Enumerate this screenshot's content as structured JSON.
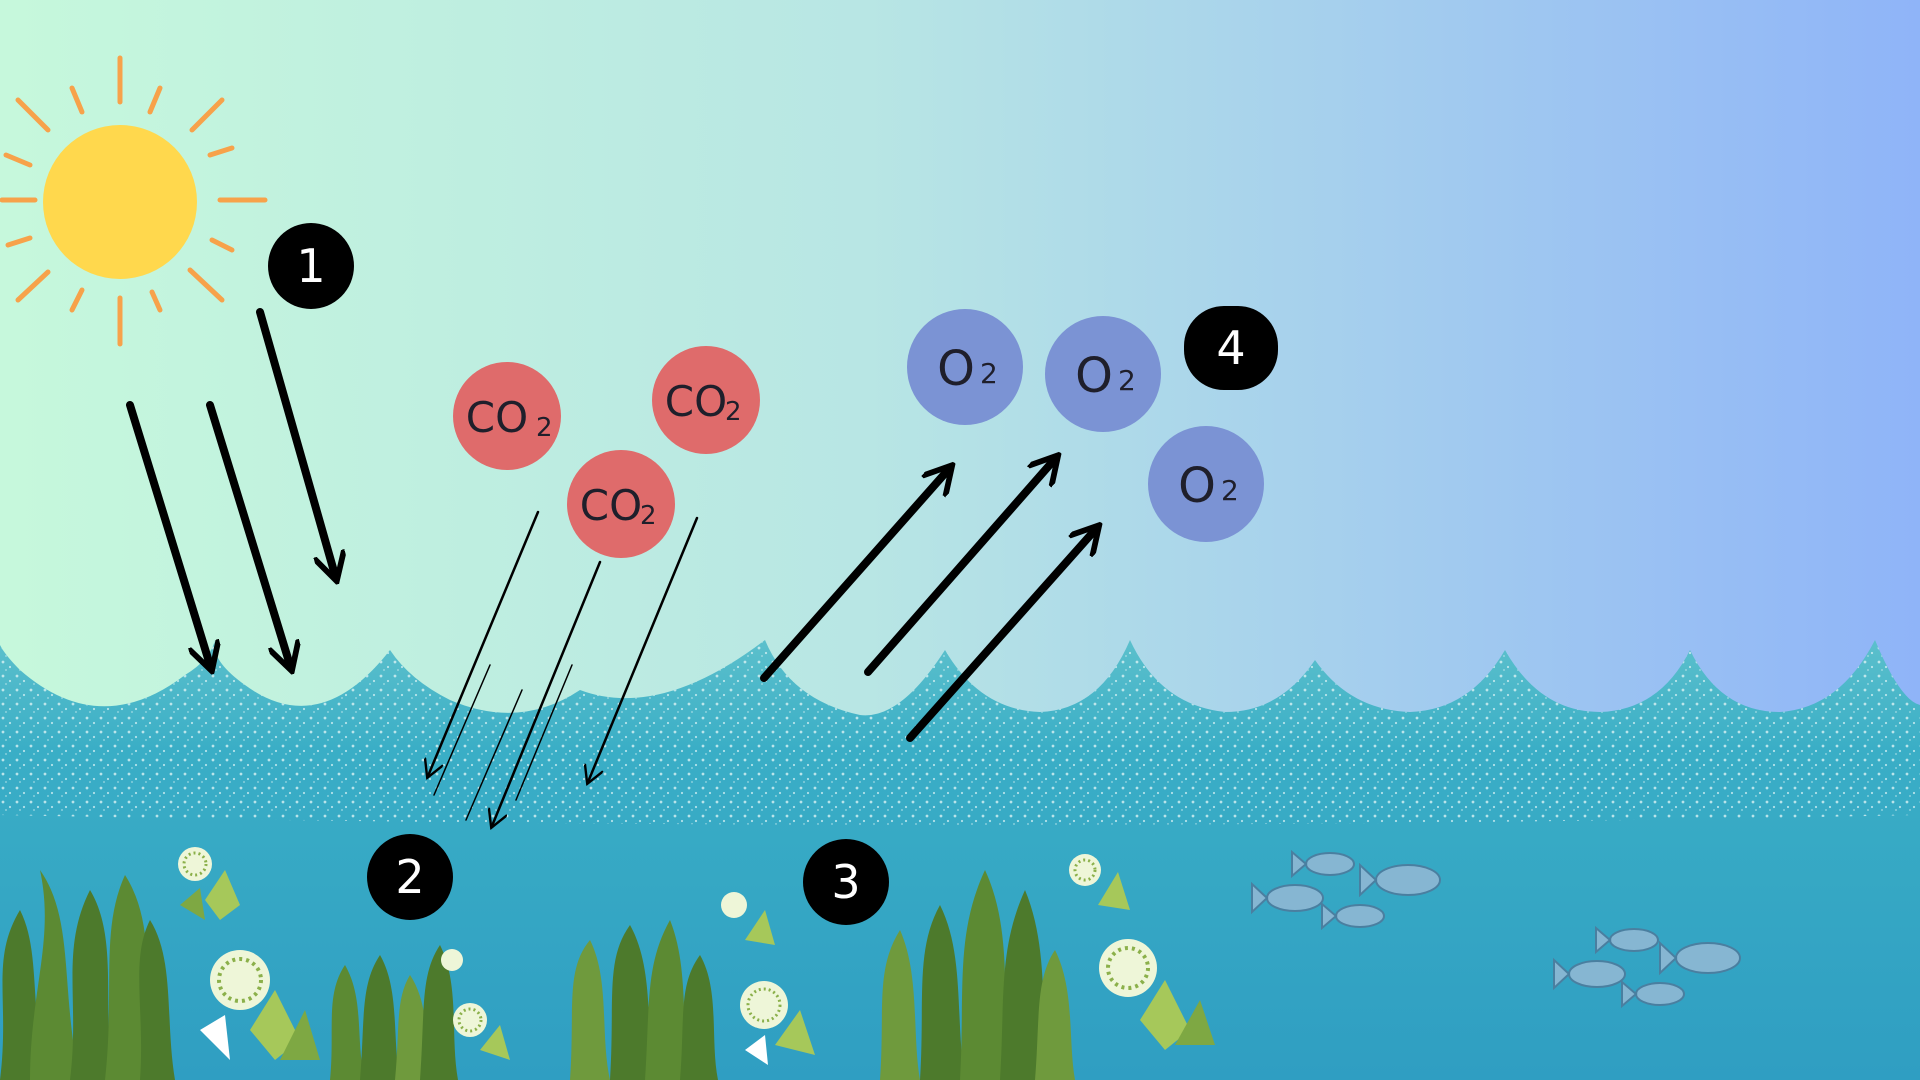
{
  "colors": {
    "sky_left": "#c6f8dc",
    "sky_mid": "#b8e6e4",
    "sky_right": "#8fb4f8",
    "water": "#3aaec6",
    "water_deep": "#2f9ec2",
    "sun": "#ffd84d",
    "sun_rays": "#f7a24a",
    "co2": "#df6b6b",
    "o2": "#7b93d4",
    "marker": "#000000",
    "plant_dark": "#4d7a2c",
    "plant_light": "#7ea843",
    "fish": "#86b6d2"
  },
  "markers": [
    {
      "id": "1",
      "label": "1"
    },
    {
      "id": "2",
      "label": "2"
    },
    {
      "id": "3",
      "label": "3"
    },
    {
      "id": "4",
      "label": "4"
    }
  ],
  "molecules": {
    "co2": {
      "main": "CO",
      "sub": "2"
    },
    "o2": {
      "main": "O",
      "sub": "2"
    }
  },
  "icons": [
    "sun-icon",
    "co2-molecule-icon",
    "o2-molecule-icon",
    "arrow-icon",
    "seaweed-icon",
    "algae-icon",
    "fish-icon"
  ]
}
